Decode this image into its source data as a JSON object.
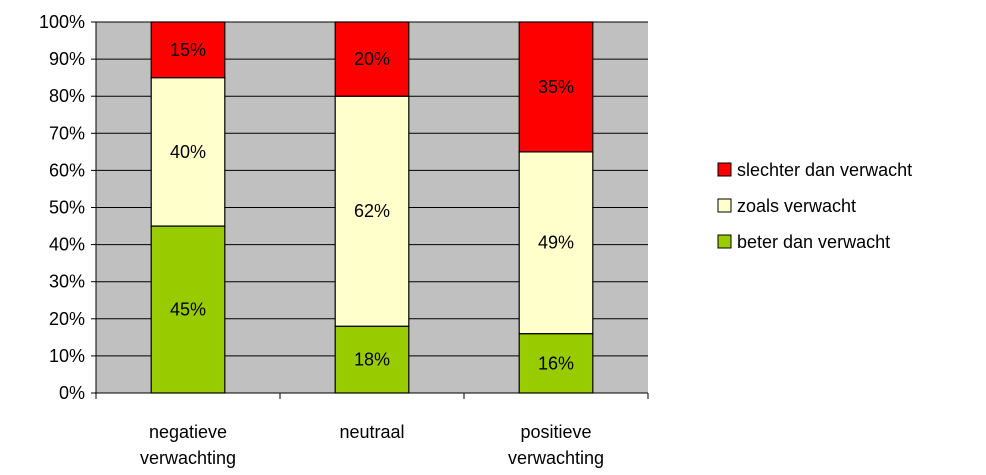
{
  "chart_data": {
    "type": "bar",
    "stacked": true,
    "categories": [
      [
        "negatieve",
        "verwachting"
      ],
      [
        "neutraal"
      ],
      [
        "positieve",
        "verwachting"
      ]
    ],
    "series": [
      {
        "name": "beter dan verwacht",
        "color": "#99cc00",
        "values": [
          45,
          18,
          16
        ],
        "labels": [
          "45%",
          "18%",
          "16%"
        ]
      },
      {
        "name": "zoals verwacht",
        "color": "#ffffcc",
        "values": [
          40,
          62,
          49
        ],
        "labels": [
          "40%",
          "62%",
          "49%"
        ]
      },
      {
        "name": "slechter dan verwacht",
        "color": "#ff0000",
        "values": [
          15,
          20,
          35
        ],
        "labels": [
          "15%",
          "20%",
          "35%"
        ]
      }
    ],
    "legend_order": [
      2,
      1,
      0
    ],
    "y_ticks": [
      "0%",
      "10%",
      "20%",
      "30%",
      "40%",
      "50%",
      "60%",
      "70%",
      "80%",
      "90%",
      "100%"
    ],
    "ylim": [
      0,
      100
    ],
    "grid": true,
    "plot_background": "#c0c0c0",
    "legend_position": "right"
  }
}
